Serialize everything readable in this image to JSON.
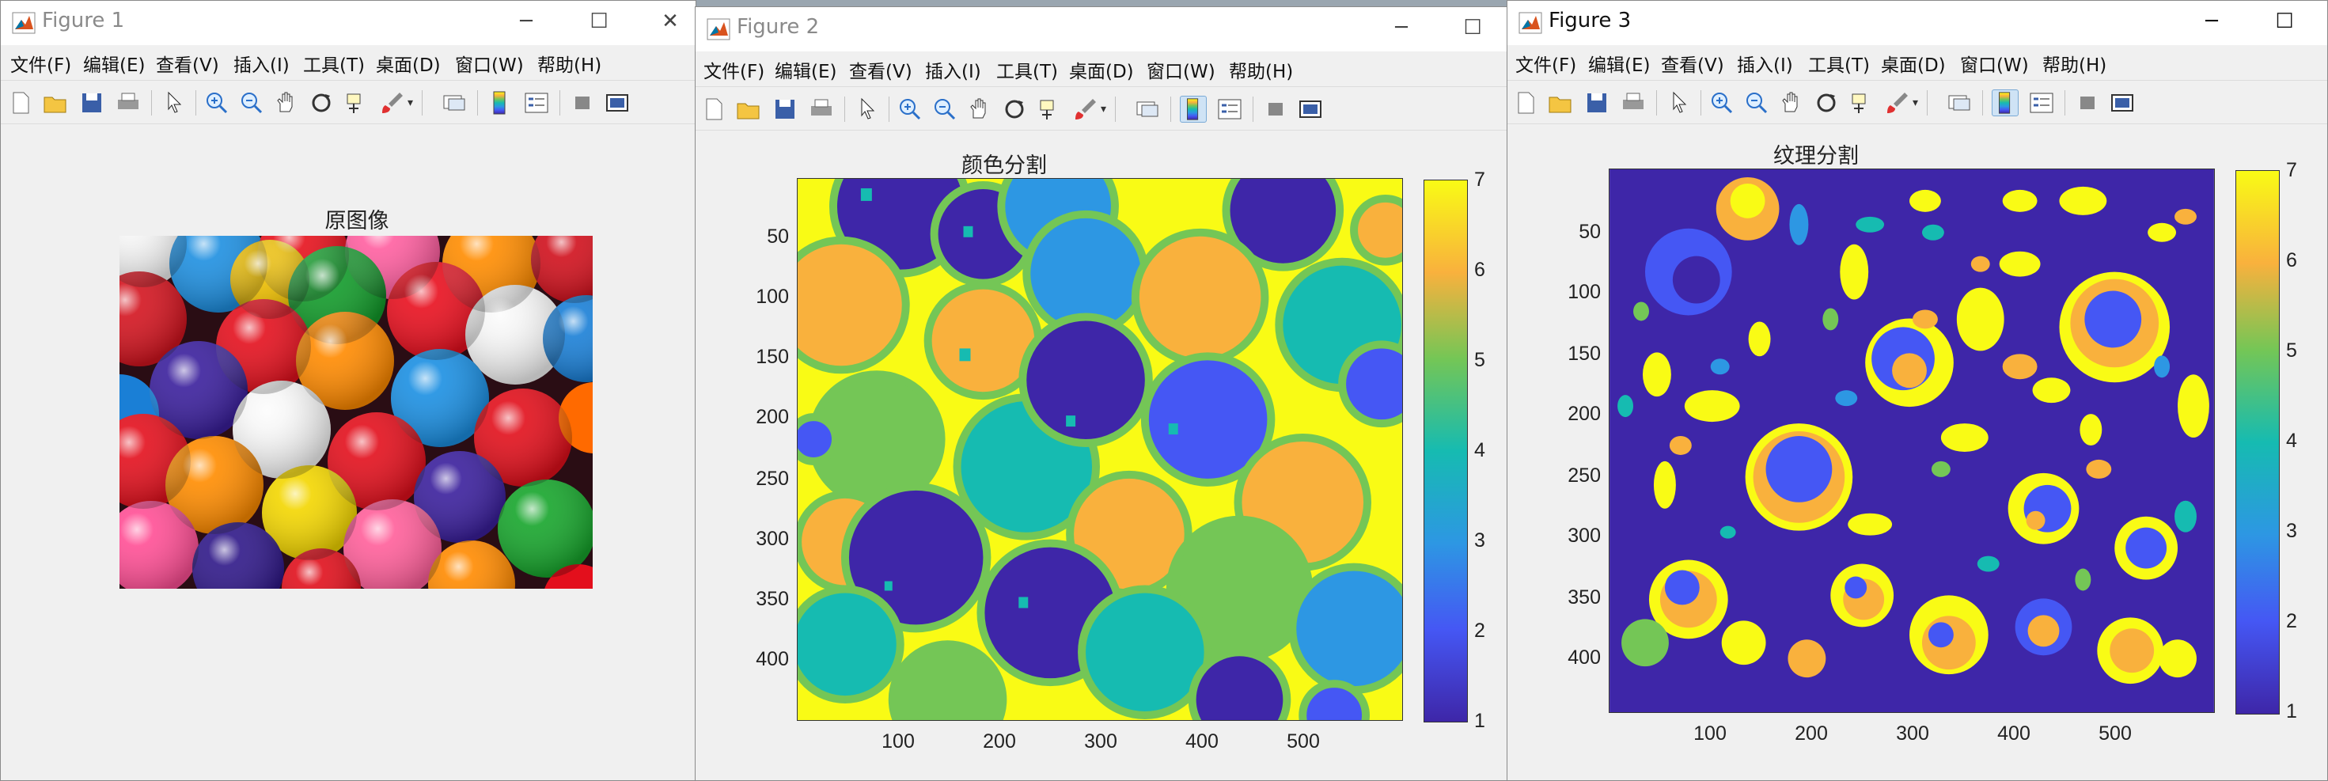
{
  "menu": [
    "文件(F)",
    "编辑(E)",
    "查看(V)",
    "插入(I)",
    "工具(T)",
    "桌面(D)",
    "窗口(W)",
    "帮助(H)"
  ],
  "colors": {
    "c1": "#3e26a8",
    "c2": "#4557f4",
    "c3": "#2d97e3",
    "c4": "#16bbb1",
    "c5": "#74c656",
    "c6": "#f9b13d",
    "c7": "#f9fb15"
  },
  "figure1": {
    "title": "Figure 1",
    "plot_title": "原图像"
  },
  "figure2": {
    "title": "Figure 2",
    "plot_title": "颜色分割",
    "yticks": [
      "50",
      "100",
      "150",
      "200",
      "250",
      "300",
      "350",
      "400"
    ],
    "xticks": [
      "100",
      "200",
      "300",
      "400",
      "500"
    ],
    "cbticks": [
      "7",
      "6",
      "5",
      "4",
      "3",
      "2",
      "1"
    ]
  },
  "figure3": {
    "title": "Figure 3",
    "plot_title": "纹理分割",
    "yticks": [
      "50",
      "100",
      "150",
      "200",
      "250",
      "300",
      "350",
      "400"
    ],
    "xticks": [
      "100",
      "200",
      "300",
      "400",
      "500"
    ],
    "cbticks": [
      "7",
      "6",
      "5",
      "4",
      "3",
      "2",
      "1"
    ]
  }
}
